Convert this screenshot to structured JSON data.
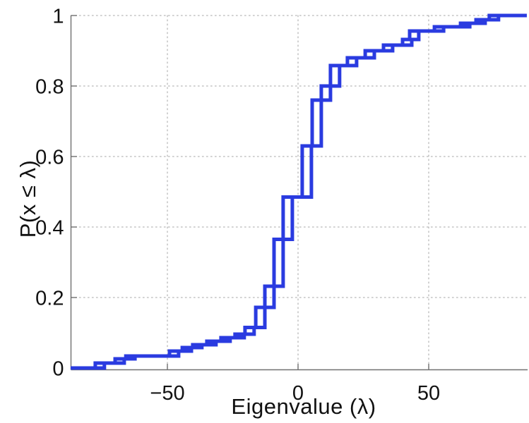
{
  "chart_data": {
    "type": "line",
    "subtype": "empirical-cdf-step",
    "title": "",
    "xlabel": "Eigenvalue (λ)",
    "ylabel": "P(x ≤ λ)",
    "xlim": [
      -87,
      87.5
    ],
    "ylim": [
      0,
      1
    ],
    "xticks": [
      {
        "value": -50,
        "label": "−50"
      },
      {
        "value": 0,
        "label": "0"
      },
      {
        "value": 50,
        "label": "50"
      }
    ],
    "yticks": [
      {
        "value": 0,
        "label": "0"
      },
      {
        "value": 0.2,
        "label": "0.2"
      },
      {
        "value": 0.4,
        "label": "0.4"
      },
      {
        "value": 0.6,
        "label": "0.6"
      },
      {
        "value": 0.8,
        "label": "0.8"
      },
      {
        "value": 1,
        "label": "1"
      }
    ],
    "grid": "dotted",
    "legend": "none",
    "line_color": "#2a3be0",
    "line_width": 5,
    "axis_color": "#707070",
    "grid_color": "#b8b8b8",
    "series": [
      {
        "name": "ecdf-curve-1",
        "points": [
          [
            -77.6,
            0.014
          ],
          [
            -70.0,
            0.026
          ],
          [
            -65.9,
            0.034
          ],
          [
            -49.2,
            0.048
          ],
          [
            -44.3,
            0.058
          ],
          [
            -40.3,
            0.066
          ],
          [
            -34.9,
            0.076
          ],
          [
            -29.5,
            0.086
          ],
          [
            -24.1,
            0.096
          ],
          [
            -20.3,
            0.115
          ],
          [
            -16.2,
            0.172
          ],
          [
            -12.7,
            0.232
          ],
          [
            -9.2,
            0.365
          ],
          [
            -5.7,
            0.485
          ],
          [
            1.6,
            0.63
          ],
          [
            5.4,
            0.76
          ],
          [
            8.9,
            0.8
          ],
          [
            12.4,
            0.858
          ],
          [
            18.9,
            0.88
          ],
          [
            25.7,
            0.9
          ],
          [
            32.7,
            0.916
          ],
          [
            40.0,
            0.932
          ],
          [
            42.7,
            0.956
          ],
          [
            52.2,
            0.968
          ],
          [
            62.2,
            0.978
          ],
          [
            68.1,
            0.988
          ],
          [
            73.2,
            1.0
          ]
        ]
      },
      {
        "name": "ecdf-curve-2",
        "points": [
          [
            -74.1,
            0.014
          ],
          [
            -66.5,
            0.026
          ],
          [
            -62.4,
            0.034
          ],
          [
            -45.7,
            0.048
          ],
          [
            -40.8,
            0.058
          ],
          [
            -36.8,
            0.066
          ],
          [
            -31.4,
            0.076
          ],
          [
            -26.0,
            0.086
          ],
          [
            -20.6,
            0.096
          ],
          [
            -16.8,
            0.115
          ],
          [
            -12.7,
            0.172
          ],
          [
            -9.2,
            0.232
          ],
          [
            -5.7,
            0.365
          ],
          [
            -2.2,
            0.485
          ],
          [
            5.1,
            0.63
          ],
          [
            8.9,
            0.76
          ],
          [
            12.4,
            0.8
          ],
          [
            15.9,
            0.858
          ],
          [
            22.4,
            0.88
          ],
          [
            29.2,
            0.9
          ],
          [
            36.2,
            0.916
          ],
          [
            43.5,
            0.932
          ],
          [
            46.2,
            0.956
          ],
          [
            55.7,
            0.968
          ],
          [
            65.7,
            0.978
          ],
          [
            71.6,
            0.988
          ],
          [
            76.7,
            1.0
          ]
        ]
      }
    ]
  }
}
